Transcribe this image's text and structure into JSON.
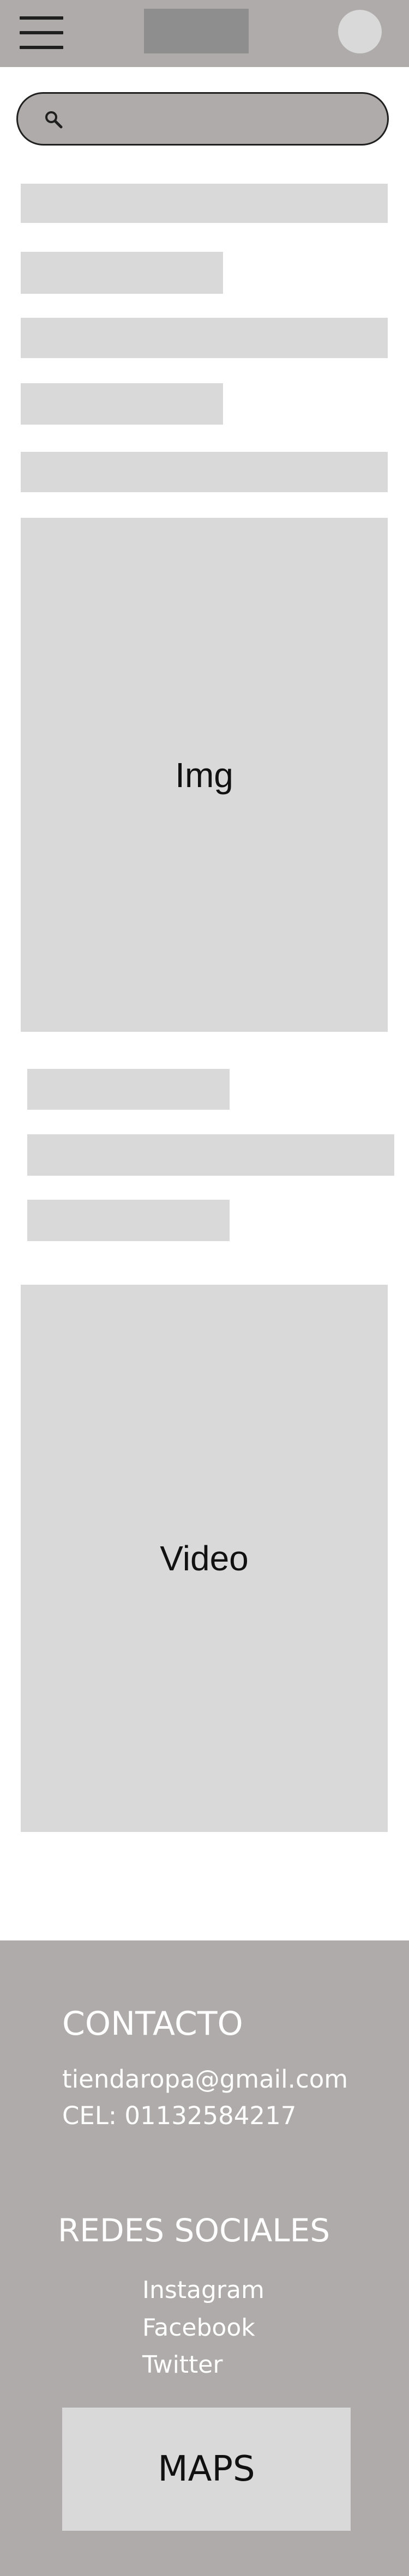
{
  "header": {
    "menu_icon": "hamburger-menu-icon",
    "logo": "logo-placeholder",
    "avatar": "user-avatar"
  },
  "search": {
    "icon": "search-icon",
    "value": "",
    "placeholder": ""
  },
  "media": {
    "image_label": "Img",
    "video_label": "Video"
  },
  "footer": {
    "contact_heading": "CONTACTO",
    "email": "tiendaropa@gmail.com",
    "phone": "CEL: 01132584217",
    "social_heading": "REDES SOCIALES",
    "social_links": [
      "Instagram",
      "Facebook",
      "Twitter"
    ],
    "maps_label": "MAPS"
  },
  "colors": {
    "header_bg": "#aeabaa",
    "placeholder_gray": "#d9d9d9",
    "logo_gray": "#8e8e8e",
    "footer_bg": "#aeabaa",
    "footer_text": "#ffffff"
  }
}
